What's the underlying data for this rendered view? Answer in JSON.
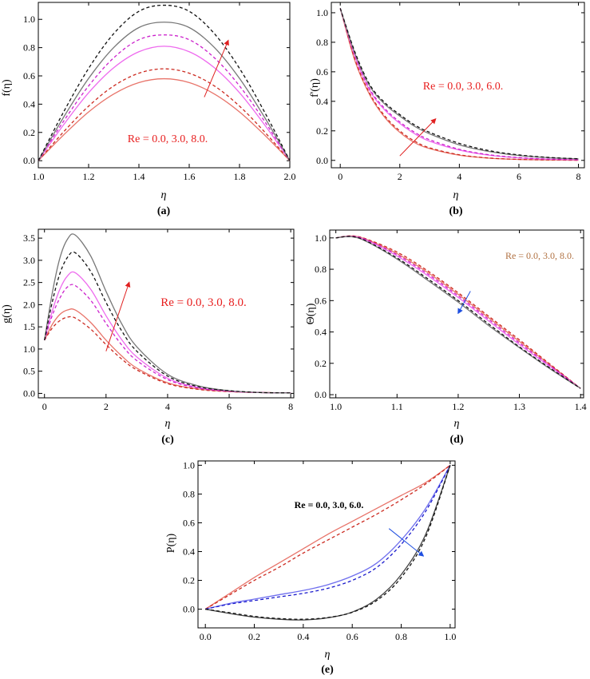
{
  "chart_data": [
    {
      "id": "a",
      "type": "line",
      "panel_label": "(a)",
      "xlabel": "η",
      "ylabel": "f(η)",
      "xlim": [
        1.0,
        2.0
      ],
      "ylim": [
        -0.05,
        1.12
      ],
      "xticks": [
        "1.0",
        "1.2",
        "1.4",
        "1.6",
        "1.8",
        "2.0"
      ],
      "yticks": [
        "0.0",
        "0.2",
        "0.4",
        "0.6",
        "0.8",
        "1.0"
      ],
      "annotation": "Re = 0.0, 3.0, 8.0.",
      "series": [
        {
          "color": "#e8746a",
          "dash": false,
          "x": [
            1.0,
            1.1,
            1.2,
            1.3,
            1.4,
            1.5,
            1.6,
            1.7,
            1.8,
            1.9,
            2.0
          ],
          "y": [
            0.0,
            0.181,
            0.345,
            0.472,
            0.553,
            0.58,
            0.553,
            0.472,
            0.345,
            0.181,
            0.0
          ]
        },
        {
          "color": "#cc2a20",
          "dash": true,
          "x": [
            1.0,
            1.1,
            1.2,
            1.3,
            1.4,
            1.5,
            1.6,
            1.7,
            1.8,
            1.9,
            2.0
          ],
          "y": [
            0.0,
            0.203,
            0.386,
            0.529,
            0.619,
            0.65,
            0.619,
            0.529,
            0.386,
            0.203,
            0.0
          ]
        },
        {
          "color": "#ee6aee",
          "dash": false,
          "x": [
            1.0,
            1.1,
            1.2,
            1.3,
            1.4,
            1.5,
            1.6,
            1.7,
            1.8,
            1.9,
            2.0
          ],
          "y": [
            0.0,
            0.253,
            0.481,
            0.658,
            0.771,
            0.81,
            0.771,
            0.658,
            0.481,
            0.253,
            0.0
          ]
        },
        {
          "color": "#cc22cc",
          "dash": true,
          "x": [
            1.0,
            1.1,
            1.2,
            1.3,
            1.4,
            1.5,
            1.6,
            1.7,
            1.8,
            1.9,
            2.0
          ],
          "y": [
            0.0,
            0.278,
            0.529,
            0.728,
            0.856,
            0.89,
            0.856,
            0.728,
            0.529,
            0.278,
            0.0
          ]
        },
        {
          "color": "#777777",
          "dash": false,
          "x": [
            1.0,
            1.1,
            1.2,
            1.3,
            1.4,
            1.5,
            1.6,
            1.7,
            1.8,
            1.9,
            2.0
          ],
          "y": [
            0.0,
            0.306,
            0.582,
            0.801,
            0.942,
            0.98,
            0.942,
            0.801,
            0.582,
            0.306,
            0.0
          ]
        },
        {
          "color": "#111111",
          "dash": true,
          "x": [
            1.0,
            1.1,
            1.2,
            1.3,
            1.4,
            1.5,
            1.6,
            1.7,
            1.8,
            1.9,
            2.0
          ],
          "y": [
            0.0,
            0.343,
            0.653,
            0.899,
            1.057,
            1.1,
            1.057,
            0.899,
            0.653,
            0.343,
            0.0
          ]
        }
      ],
      "arrow": {
        "color": "#e02020",
        "from": [
          1.66,
          0.45
        ],
        "to": [
          1.755,
          0.85
        ]
      }
    },
    {
      "id": "b",
      "type": "line",
      "panel_label": "(b)",
      "xlabel": "η",
      "ylabel": "f'(η)",
      "xlim": [
        -0.3,
        8.2
      ],
      "ylim": [
        -0.05,
        1.07
      ],
      "xticks": [
        "0",
        "2",
        "4",
        "6",
        "8"
      ],
      "yticks": [
        "0.0",
        "0.2",
        "0.4",
        "0.6",
        "0.8",
        "1.0"
      ],
      "annotation": "Re = 0.0, 3.0, 6.0.",
      "series": [
        {
          "color": "#e8746a",
          "dash": false,
          "x": [
            0,
            0.5,
            1,
            1.5,
            2,
            2.5,
            3,
            4,
            5,
            6,
            7,
            8
          ],
          "y": [
            1.03,
            0.67,
            0.44,
            0.29,
            0.19,
            0.12,
            0.08,
            0.035,
            0.015,
            0.006,
            0.003,
            0.001
          ]
        },
        {
          "color": "#cc2a20",
          "dash": true,
          "x": [
            0,
            0.5,
            1,
            1.5,
            2,
            2.5,
            3,
            4,
            5,
            6,
            7,
            8
          ],
          "y": [
            1.03,
            0.68,
            0.45,
            0.3,
            0.2,
            0.13,
            0.085,
            0.038,
            0.016,
            0.007,
            0.003,
            0.001
          ]
        },
        {
          "color": "#ee6aee",
          "dash": false,
          "x": [
            0,
            0.5,
            1,
            1.5,
            2,
            2.5,
            3,
            4,
            5,
            6,
            7,
            8
          ],
          "y": [
            1.03,
            0.7,
            0.47,
            0.34,
            0.25,
            0.18,
            0.13,
            0.07,
            0.035,
            0.017,
            0.008,
            0.004
          ]
        },
        {
          "color": "#cc22cc",
          "dash": true,
          "x": [
            0,
            0.5,
            1,
            1.5,
            2,
            2.5,
            3,
            4,
            5,
            6,
            7,
            8
          ],
          "y": [
            1.03,
            0.71,
            0.48,
            0.35,
            0.26,
            0.19,
            0.14,
            0.075,
            0.038,
            0.019,
            0.009,
            0.004
          ]
        },
        {
          "color": "#777777",
          "dash": false,
          "x": [
            0,
            0.5,
            1,
            1.5,
            2,
            2.5,
            3,
            4,
            5,
            6,
            7,
            8
          ],
          "y": [
            1.03,
            0.72,
            0.5,
            0.38,
            0.3,
            0.23,
            0.18,
            0.105,
            0.06,
            0.033,
            0.018,
            0.01
          ]
        },
        {
          "color": "#111111",
          "dash": true,
          "x": [
            0,
            0.5,
            1,
            1.5,
            2,
            2.5,
            3,
            4,
            5,
            6,
            7,
            8
          ],
          "y": [
            1.03,
            0.73,
            0.51,
            0.39,
            0.31,
            0.24,
            0.19,
            0.115,
            0.066,
            0.037,
            0.02,
            0.011
          ]
        }
      ],
      "arrow": {
        "color": "#e02020",
        "from": [
          2.0,
          0.03
        ],
        "to": [
          3.2,
          0.28
        ]
      }
    },
    {
      "id": "c",
      "type": "line",
      "panel_label": "(c)",
      "xlabel": "η",
      "ylabel": "g(η)",
      "xlim": [
        -0.2,
        8.1
      ],
      "ylim": [
        -0.1,
        3.7
      ],
      "xticks": [
        "0",
        "2",
        "4",
        "6",
        "8"
      ],
      "yticks": [
        "0.0",
        "0.5",
        "1.0",
        "1.5",
        "2.0",
        "2.5",
        "3.0",
        "3.5"
      ],
      "annotation": "Re = 0.0, 3.0, 8.0.",
      "series": [
        {
          "color": "#e8746a",
          "dash": false,
          "x": [
            0,
            0.25,
            0.5,
            0.75,
            1,
            1.5,
            2,
            2.5,
            3,
            4,
            5,
            6,
            7,
            8
          ],
          "y": [
            1.2,
            1.55,
            1.78,
            1.88,
            1.88,
            1.6,
            1.2,
            0.85,
            0.57,
            0.24,
            0.1,
            0.04,
            0.02,
            0.01
          ]
        },
        {
          "color": "#cc2a20",
          "dash": true,
          "x": [
            0,
            0.25,
            0.5,
            0.75,
            1,
            1.5,
            2,
            2.5,
            3,
            4,
            5,
            6,
            7,
            8
          ],
          "y": [
            1.2,
            1.47,
            1.64,
            1.72,
            1.7,
            1.45,
            1.1,
            0.78,
            0.53,
            0.22,
            0.09,
            0.04,
            0.02,
            0.01
          ]
        },
        {
          "color": "#ee6aee",
          "dash": false,
          "x": [
            0,
            0.25,
            0.5,
            0.75,
            1,
            1.5,
            2,
            2.5,
            3,
            4,
            5,
            6,
            7,
            8
          ],
          "y": [
            1.2,
            1.85,
            2.35,
            2.65,
            2.72,
            2.35,
            1.75,
            1.22,
            0.82,
            0.34,
            0.13,
            0.05,
            0.02,
            0.01
          ]
        },
        {
          "color": "#cc22cc",
          "dash": true,
          "x": [
            0,
            0.25,
            0.5,
            0.75,
            1,
            1.5,
            2,
            2.5,
            3,
            4,
            5,
            6,
            7,
            8
          ],
          "y": [
            1.2,
            1.75,
            2.15,
            2.4,
            2.43,
            2.1,
            1.58,
            1.1,
            0.74,
            0.31,
            0.12,
            0.05,
            0.02,
            0.01
          ]
        },
        {
          "color": "#777777",
          "dash": false,
          "x": [
            0,
            0.25,
            0.5,
            0.75,
            1,
            1.5,
            2,
            2.5,
            3,
            4,
            5,
            6,
            7,
            8
          ],
          "y": [
            1.2,
            2.25,
            3.05,
            3.48,
            3.57,
            3.1,
            2.3,
            1.58,
            1.05,
            0.43,
            0.17,
            0.06,
            0.02,
            0.01
          ]
        },
        {
          "color": "#111111",
          "dash": true,
          "x": [
            0,
            0.25,
            0.5,
            0.75,
            1,
            1.5,
            2,
            2.5,
            3,
            4,
            5,
            6,
            7,
            8
          ],
          "y": [
            1.2,
            2.05,
            2.7,
            3.07,
            3.17,
            2.75,
            2.05,
            1.42,
            0.95,
            0.39,
            0.15,
            0.06,
            0.02,
            0.01
          ]
        }
      ],
      "arrow": {
        "color": "#e02020",
        "from": [
          2.0,
          0.95
        ],
        "to": [
          2.75,
          2.5
        ]
      }
    },
    {
      "id": "d",
      "type": "line",
      "panel_label": "(d)",
      "xlabel": "η",
      "ylabel": "Θ(η)",
      "xlim": [
        0.99,
        1.405
      ],
      "ylim": [
        -0.02,
        1.05
      ],
      "xticks": [
        "1.0",
        "1.1",
        "1.2",
        "1.3",
        "1.4"
      ],
      "yticks": [
        "0.0",
        "0.2",
        "0.4",
        "0.6",
        "0.8",
        "1.0"
      ],
      "annotation": "Re = 0.0, 3.0, 8.0.",
      "series": [
        {
          "color": "#e8746a",
          "dash": false,
          "x": [
            1.0,
            1.025,
            1.05,
            1.1,
            1.15,
            1.2,
            1.25,
            1.3,
            1.35,
            1.4
          ],
          "y": [
            1.0,
            1.012,
            0.99,
            0.9,
            0.78,
            0.64,
            0.49,
            0.34,
            0.19,
            0.04
          ]
        },
        {
          "color": "#cc2a20",
          "dash": true,
          "x": [
            1.0,
            1.025,
            1.05,
            1.1,
            1.15,
            1.2,
            1.25,
            1.3,
            1.35,
            1.4
          ],
          "y": [
            1.0,
            1.013,
            0.993,
            0.91,
            0.79,
            0.65,
            0.5,
            0.35,
            0.195,
            0.04
          ]
        },
        {
          "color": "#ee6aee",
          "dash": false,
          "x": [
            1.0,
            1.025,
            1.05,
            1.1,
            1.15,
            1.2,
            1.25,
            1.3,
            1.35,
            1.4
          ],
          "y": [
            1.0,
            1.01,
            0.985,
            0.885,
            0.76,
            0.62,
            0.47,
            0.32,
            0.18,
            0.04
          ]
        },
        {
          "color": "#cc22cc",
          "dash": true,
          "x": [
            1.0,
            1.025,
            1.05,
            1.1,
            1.15,
            1.2,
            1.25,
            1.3,
            1.35,
            1.4
          ],
          "y": [
            1.0,
            1.011,
            0.988,
            0.893,
            0.77,
            0.63,
            0.48,
            0.33,
            0.185,
            0.04
          ]
        },
        {
          "color": "#777777",
          "dash": false,
          "x": [
            1.0,
            1.025,
            1.05,
            1.1,
            1.15,
            1.2,
            1.25,
            1.3,
            1.35,
            1.4
          ],
          "y": [
            1.0,
            1.008,
            0.977,
            0.865,
            0.73,
            0.59,
            0.44,
            0.3,
            0.165,
            0.04
          ]
        },
        {
          "color": "#111111",
          "dash": true,
          "x": [
            1.0,
            1.025,
            1.05,
            1.1,
            1.15,
            1.2,
            1.25,
            1.3,
            1.35,
            1.4
          ],
          "y": [
            1.0,
            1.009,
            0.98,
            0.872,
            0.74,
            0.6,
            0.45,
            0.305,
            0.17,
            0.04
          ]
        }
      ],
      "arrow": {
        "color": "#1f4fe0",
        "from": [
          1.22,
          0.66
        ],
        "to": [
          1.2,
          0.52
        ]
      }
    },
    {
      "id": "e",
      "type": "line",
      "panel_label": "(e)",
      "xlabel": "η",
      "ylabel": "P(η)",
      "xlim": [
        -0.03,
        1.02
      ],
      "ylim": [
        -0.13,
        1.03
      ],
      "xticks": [
        "0.0",
        "0.2",
        "0.4",
        "0.6",
        "0.8",
        "1.0"
      ],
      "yticks": [
        "0.0",
        "0.2",
        "0.4",
        "0.6",
        "0.8",
        "1.0"
      ],
      "annotation": "Re = 0.0, 3.0, 6.0.",
      "series": [
        {
          "color": "#e8746a",
          "dash": false,
          "x": [
            0,
            0.1,
            0.2,
            0.3,
            0.4,
            0.5,
            0.6,
            0.7,
            0.8,
            0.9,
            1.0
          ],
          "y": [
            0.0,
            0.11,
            0.22,
            0.32,
            0.42,
            0.52,
            0.61,
            0.7,
            0.79,
            0.88,
            1.0
          ]
        },
        {
          "color": "#cc2a20",
          "dash": true,
          "x": [
            0,
            0.1,
            0.2,
            0.3,
            0.4,
            0.5,
            0.6,
            0.7,
            0.8,
            0.9,
            1.0
          ],
          "y": [
            0.0,
            0.1,
            0.2,
            0.29,
            0.39,
            0.48,
            0.57,
            0.66,
            0.76,
            0.87,
            1.0
          ]
        },
        {
          "color": "#6f6fee",
          "dash": false,
          "x": [
            0,
            0.1,
            0.2,
            0.3,
            0.4,
            0.5,
            0.6,
            0.7,
            0.8,
            0.9,
            1.0
          ],
          "y": [
            0.0,
            0.04,
            0.07,
            0.1,
            0.13,
            0.17,
            0.23,
            0.32,
            0.48,
            0.7,
            1.0
          ]
        },
        {
          "color": "#1a1acc",
          "dash": true,
          "x": [
            0,
            0.1,
            0.2,
            0.3,
            0.4,
            0.5,
            0.6,
            0.7,
            0.8,
            0.9,
            1.0
          ],
          "y": [
            0.0,
            0.035,
            0.06,
            0.085,
            0.11,
            0.145,
            0.2,
            0.29,
            0.45,
            0.68,
            1.0
          ]
        },
        {
          "color": "#444444",
          "dash": false,
          "x": [
            0,
            0.1,
            0.2,
            0.3,
            0.4,
            0.5,
            0.6,
            0.7,
            0.8,
            0.9,
            1.0
          ],
          "y": [
            0.0,
            -0.03,
            -0.055,
            -0.07,
            -0.075,
            -0.06,
            -0.02,
            0.07,
            0.24,
            0.52,
            1.0
          ]
        },
        {
          "color": "#111111",
          "dash": true,
          "x": [
            0,
            0.1,
            0.2,
            0.3,
            0.4,
            0.5,
            0.6,
            0.7,
            0.8,
            0.9,
            1.0
          ],
          "y": [
            0.0,
            -0.025,
            -0.05,
            -0.065,
            -0.07,
            -0.058,
            -0.022,
            0.06,
            0.22,
            0.5,
            1.0
          ]
        }
      ],
      "arrow": {
        "color": "#1f4fe0",
        "from": [
          0.75,
          0.56
        ],
        "to": [
          0.89,
          0.37
        ]
      }
    }
  ]
}
